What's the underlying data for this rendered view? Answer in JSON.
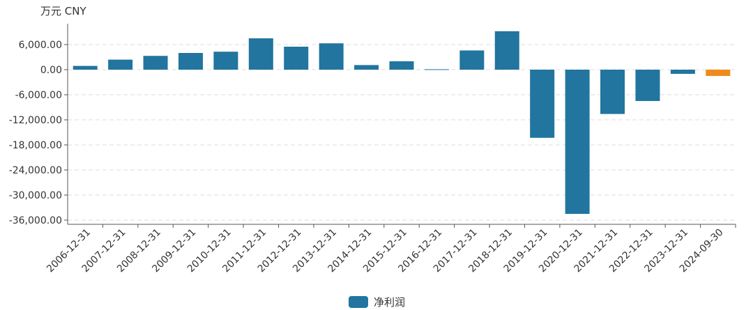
{
  "chart_data": {
    "type": "bar",
    "unit": "万元  CNY",
    "legend": {
      "label": "净利润",
      "color": "#21759f",
      "placement": "bottom-center"
    },
    "categories": [
      "2006-12-31",
      "2007-12-31",
      "2008-12-31",
      "2009-12-31",
      "2010-12-31",
      "2011-12-31",
      "2012-12-31",
      "2013-12-31",
      "2014-12-31",
      "2015-12-31",
      "2016-12-31",
      "2017-12-31",
      "2018-12-31",
      "2019-12-31",
      "2020-12-31",
      "2021-12-31",
      "2022-12-31",
      "2023-12-31",
      "2024-09-30"
    ],
    "series": [
      {
        "name": "净利润",
        "values": [
          900,
          2400,
          3300,
          4000,
          4300,
          7500,
          5500,
          6300,
          1100,
          2000,
          100,
          4600,
          9200,
          -16300,
          -34500,
          -10600,
          -7500,
          -1000,
          -1500
        ]
      }
    ],
    "bar_colors": [
      "#21759f",
      "#21759f",
      "#21759f",
      "#21759f",
      "#21759f",
      "#21759f",
      "#21759f",
      "#21759f",
      "#21759f",
      "#21759f",
      "#21759f",
      "#21759f",
      "#21759f",
      "#21759f",
      "#21759f",
      "#21759f",
      "#21759f",
      "#21759f",
      "#f08a1c"
    ],
    "yticks": [
      6000,
      0,
      -6000,
      -12000,
      -18000,
      -24000,
      -30000,
      -36000
    ],
    "ytick_labels": [
      "6,000.00",
      "0.00",
      "-6,000.00",
      "-12,000.00",
      "-18,000.00",
      "-24,000.00",
      "-30,000.00",
      "-36,000.00"
    ],
    "ylim": [
      -37000,
      11000
    ],
    "grid": "horizontal-dashed",
    "colors": {
      "axis": "#555555",
      "grid": "#dcdcdc",
      "text": "#333333",
      "highlight": "#f08a1c"
    }
  }
}
